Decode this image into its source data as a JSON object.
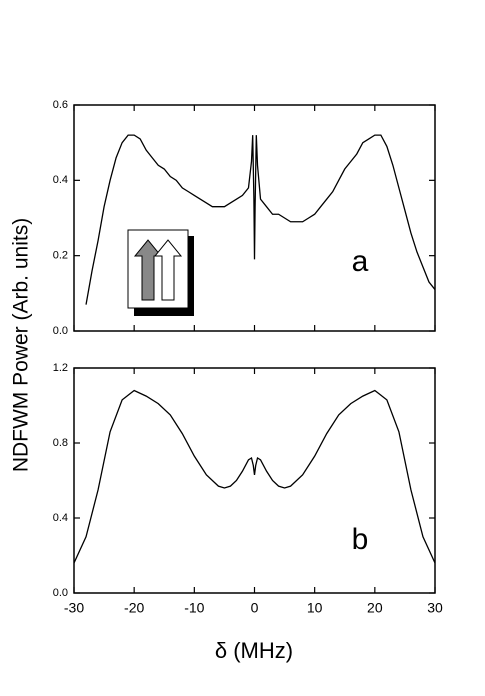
{
  "chart_data": [
    {
      "type": "line",
      "annotation": "a",
      "ylabel": "NDFWM Power (Arb. units)",
      "color": "#000000",
      "x": [
        -28,
        -27,
        -26,
        -25,
        -24,
        -23,
        -22,
        -21,
        -20,
        -19,
        -18,
        -17,
        -16,
        -15,
        -14,
        -13,
        -12,
        -11,
        -10,
        -9,
        -8,
        -7,
        -6,
        -5,
        -4,
        -3,
        -2,
        -1,
        -0.5,
        -0.3,
        -0.1,
        0,
        0.1,
        0.3,
        0.5,
        1,
        2,
        3,
        4,
        5,
        6,
        7,
        8,
        9,
        10,
        11,
        12,
        13,
        14,
        15,
        16,
        17,
        18,
        19,
        20,
        21,
        22,
        23,
        24,
        25,
        26,
        27,
        28,
        29,
        30
      ],
      "values": [
        0.07,
        0.16,
        0.24,
        0.33,
        0.4,
        0.46,
        0.5,
        0.52,
        0.52,
        0.51,
        0.48,
        0.46,
        0.44,
        0.43,
        0.41,
        0.4,
        0.38,
        0.37,
        0.36,
        0.35,
        0.34,
        0.33,
        0.33,
        0.33,
        0.34,
        0.35,
        0.36,
        0.38,
        0.45,
        0.52,
        0.35,
        0.19,
        0.33,
        0.52,
        0.44,
        0.35,
        0.33,
        0.31,
        0.31,
        0.3,
        0.29,
        0.29,
        0.29,
        0.3,
        0.31,
        0.33,
        0.35,
        0.37,
        0.4,
        0.43,
        0.45,
        0.47,
        0.5,
        0.51,
        0.52,
        0.52,
        0.49,
        0.44,
        0.38,
        0.32,
        0.26,
        0.21,
        0.17,
        0.13,
        0.11
      ],
      "xlim": [
        -30,
        30
      ],
      "xticks": [
        -30,
        -20,
        -10,
        0,
        10,
        20,
        30
      ],
      "ylim": [
        0,
        0.6
      ],
      "yticks": [
        {
          "value": 0,
          "label": "0.0"
        },
        0.2,
        0.4,
        0.6
      ]
    },
    {
      "type": "line",
      "annotation": "b",
      "xlabel": "δ (MHz)",
      "color": "#000000",
      "x": [
        -30,
        -28,
        -26,
        -24,
        -22,
        -20,
        -18,
        -16,
        -14,
        -12,
        -10,
        -8,
        -6,
        -5,
        -4,
        -3,
        -2,
        -1,
        -0.5,
        -0.2,
        0,
        0.2,
        0.5,
        1,
        2,
        3,
        4,
        5,
        6,
        8,
        10,
        12,
        14,
        16,
        18,
        20,
        22,
        24,
        26,
        28,
        30
      ],
      "values": [
        0.16,
        0.3,
        0.55,
        0.86,
        1.03,
        1.08,
        1.05,
        1.01,
        0.95,
        0.85,
        0.73,
        0.63,
        0.57,
        0.56,
        0.57,
        0.6,
        0.65,
        0.71,
        0.72,
        0.68,
        0.63,
        0.68,
        0.72,
        0.71,
        0.65,
        0.6,
        0.57,
        0.56,
        0.57,
        0.63,
        0.73,
        0.85,
        0.95,
        1.01,
        1.05,
        1.08,
        1.03,
        0.86,
        0.55,
        0.3,
        0.16
      ],
      "xlim": [
        -30,
        30
      ],
      "xticks": [
        -30,
        -20,
        -10,
        0,
        10,
        20,
        30
      ],
      "ylim": [
        0,
        1.2
      ],
      "yticks": [
        {
          "value": 0,
          "label": "0.0"
        },
        0.4,
        0.8,
        1.2
      ]
    }
  ]
}
